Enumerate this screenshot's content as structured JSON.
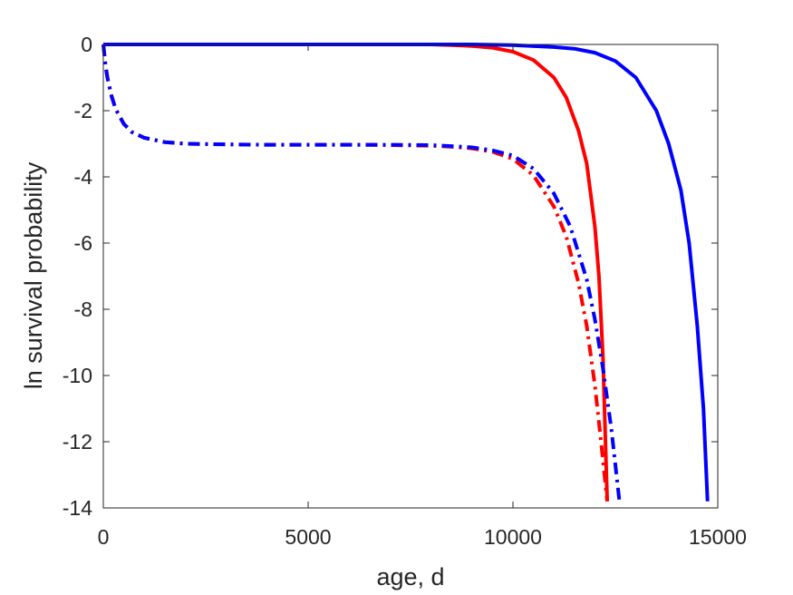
{
  "chart_data": {
    "type": "line",
    "title": "",
    "xlabel": "age, d",
    "ylabel": "ln survival probability",
    "xlim": [
      0,
      15000
    ],
    "ylim": [
      -14,
      0
    ],
    "x_ticks": [
      0,
      5000,
      10000,
      15000
    ],
    "y_ticks": [
      0,
      -2,
      -4,
      -6,
      -8,
      -10,
      -12,
      -14
    ],
    "x_tick_labels": [
      "0",
      "5000",
      "10000",
      "15000"
    ],
    "y_tick_labels": [
      "0",
      "-2",
      "-4",
      "-6",
      "-8",
      "-10",
      "-12",
      "-14"
    ],
    "grid": false,
    "legend": "none",
    "series": [
      {
        "color": "#ff0000",
        "style": "solid",
        "x": [
          0,
          2000,
          4000,
          6000,
          7000,
          8000,
          8500,
          9000,
          9500,
          10000,
          10500,
          11000,
          11300,
          11600,
          11800,
          12000,
          12100,
          12200,
          12300
        ],
        "y": [
          0,
          0,
          0,
          0,
          0,
          0,
          -0.02,
          -0.05,
          -0.1,
          -0.22,
          -0.47,
          -1.0,
          -1.6,
          -2.6,
          -3.6,
          -5.5,
          -7.0,
          -9.5,
          -13.8
        ]
      },
      {
        "color": "#0000ff",
        "style": "solid",
        "x": [
          0,
          2000,
          4000,
          6000,
          8000,
          9000,
          10000,
          11000,
          11500,
          12000,
          12500,
          13000,
          13500,
          13800,
          14100,
          14300,
          14500,
          14650,
          14750
        ],
        "y": [
          0,
          0,
          0,
          0,
          0,
          0,
          -0.02,
          -0.08,
          -0.13,
          -0.25,
          -0.5,
          -1.0,
          -2.0,
          -3.0,
          -4.4,
          -6.0,
          -8.5,
          -11.0,
          -13.8
        ]
      },
      {
        "color": "#ff0000",
        "style": "dashdot",
        "x": [
          0,
          50,
          100,
          200,
          300,
          500,
          700,
          1000,
          1500,
          2000,
          3000,
          4000,
          5000,
          6000,
          7000,
          8000,
          8500,
          9000,
          9500,
          10000,
          10500,
          11000,
          11300,
          11600,
          11800,
          12000,
          12150,
          12300
        ],
        "y": [
          0,
          -0.6,
          -1.0,
          -1.55,
          -1.95,
          -2.4,
          -2.65,
          -2.82,
          -2.95,
          -3.0,
          -3.02,
          -3.03,
          -3.03,
          -3.03,
          -3.04,
          -3.06,
          -3.09,
          -3.14,
          -3.24,
          -3.46,
          -3.95,
          -4.9,
          -5.8,
          -7.2,
          -8.5,
          -10.3,
          -12.0,
          -13.8
        ]
      },
      {
        "color": "#0000ff",
        "style": "dashdot",
        "x": [
          0,
          50,
          100,
          200,
          300,
          500,
          700,
          1000,
          1500,
          2000,
          3000,
          4000,
          5000,
          6000,
          7000,
          8000,
          8500,
          9000,
          9500,
          10000,
          10500,
          11000,
          11400,
          11800,
          12000,
          12200,
          12400,
          12600
        ],
        "y": [
          0,
          -0.6,
          -1.0,
          -1.55,
          -1.95,
          -2.4,
          -2.65,
          -2.82,
          -2.95,
          -3.0,
          -3.02,
          -3.03,
          -3.03,
          -3.03,
          -3.03,
          -3.04,
          -3.07,
          -3.11,
          -3.2,
          -3.36,
          -3.75,
          -4.5,
          -5.5,
          -7.1,
          -8.3,
          -9.8,
          -11.6,
          -13.8
        ]
      }
    ]
  }
}
